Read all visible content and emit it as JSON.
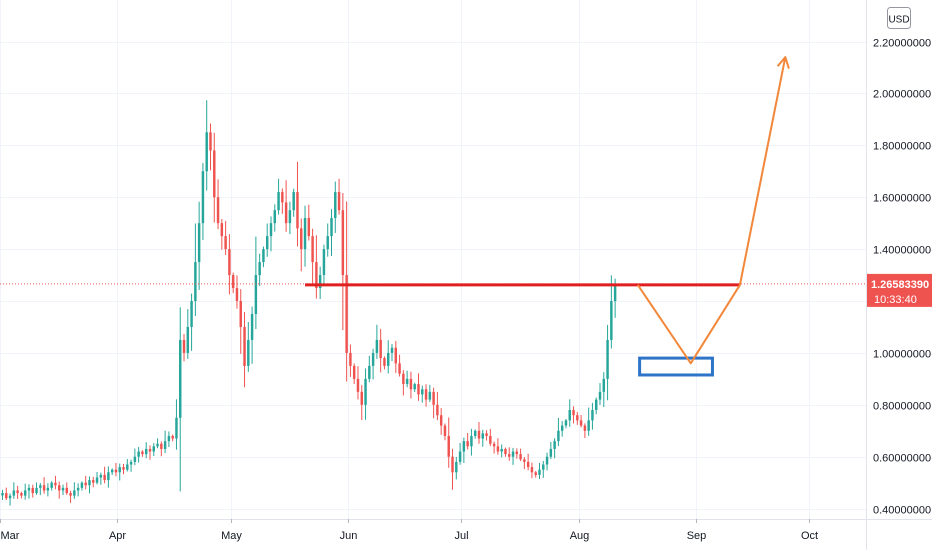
{
  "currency_button": {
    "label": "USD"
  },
  "price_label": {
    "value": "1.26583390",
    "time": "10:33:40",
    "color": "#ef5350"
  },
  "chart_data": {
    "type": "candlestick",
    "title": "",
    "xlabel": "",
    "ylabel": "",
    "ylim": [
      0.36,
      2.36
    ],
    "y_tick_labels": [
      "0.40000000",
      "0.60000000",
      "0.80000000",
      "1.00000000",
      "1.20000000",
      "1.40000000",
      "1.60000000",
      "1.80000000",
      "2.00000000",
      "2.20000000"
    ],
    "y_tick_values": [
      0.4,
      0.6,
      0.8,
      1.0,
      1.2,
      1.4,
      1.6,
      1.8,
      2.0,
      2.2
    ],
    "x_tick_labels": [
      "Mar",
      "Apr",
      "May",
      "Jun",
      "Jul",
      "Aug",
      "Sep",
      "Oct"
    ],
    "x_tick_dates": [
      "2021-03-01",
      "2021-04-01",
      "2021-05-01",
      "2021-06-01",
      "2021-07-01",
      "2021-08-01",
      "2021-09-01",
      "2021-10-01"
    ],
    "x_range": [
      "2021-03-01",
      "2021-10-16"
    ],
    "colors": {
      "up": "#26a69a",
      "down": "#ef5350",
      "grid": "#f0f3fa",
      "axis_text": "#131722"
    },
    "grid": true,
    "close": [
      0.46,
      0.44,
      0.45,
      0.47,
      0.46,
      0.45,
      0.47,
      0.48,
      0.46,
      0.48,
      0.49,
      0.47,
      0.48,
      0.5,
      0.49,
      0.47,
      0.48,
      0.46,
      0.45,
      0.47,
      0.48,
      0.5,
      0.49,
      0.51,
      0.5,
      0.52,
      0.53,
      0.51,
      0.54,
      0.55,
      0.54,
      0.56,
      0.55,
      0.57,
      0.58,
      0.6,
      0.62,
      0.61,
      0.63,
      0.62,
      0.64,
      0.65,
      0.63,
      0.66,
      0.68,
      0.67,
      0.75,
      1.05,
      1.0,
      1.1,
      1.2,
      1.35,
      1.5,
      1.7,
      1.85,
      1.78,
      1.6,
      1.5,
      1.45,
      1.4,
      1.3,
      1.25,
      1.2,
      1.1,
      0.95,
      1.05,
      1.15,
      1.3,
      1.35,
      1.4,
      1.45,
      1.5,
      1.55,
      1.62,
      1.58,
      1.5,
      1.55,
      1.62,
      1.48,
      1.4,
      1.52,
      1.45,
      1.35,
      1.25,
      1.3,
      1.4,
      1.45,
      1.52,
      1.62,
      1.55,
      1.3,
      1.0,
      0.95,
      0.9,
      0.85,
      0.8,
      0.9,
      0.95,
      1.0,
      1.05,
      0.98,
      0.95,
      1.0,
      1.02,
      0.96,
      0.92,
      0.88,
      0.9,
      0.86,
      0.88,
      0.84,
      0.86,
      0.82,
      0.85,
      0.8,
      0.76,
      0.72,
      0.68,
      0.6,
      0.54,
      0.58,
      0.62,
      0.66,
      0.64,
      0.68,
      0.7,
      0.67,
      0.69,
      0.68,
      0.65,
      0.64,
      0.62,
      0.63,
      0.61,
      0.6,
      0.62,
      0.61,
      0.59,
      0.58,
      0.56,
      0.54,
      0.53,
      0.55,
      0.57,
      0.6,
      0.63,
      0.66,
      0.7,
      0.72,
      0.74,
      0.78,
      0.76,
      0.74,
      0.72,
      0.7,
      0.74,
      0.78,
      0.82,
      0.85,
      0.9,
      1.05,
      1.2,
      1.266
    ]
  },
  "drawings": {
    "resistance_level": {
      "value": 1.262,
      "color": "#e02020"
    },
    "zone_box": {
      "y_top": 0.98,
      "y_bottom": 0.915,
      "color": "#2e74c7"
    },
    "projection_path": {
      "points": [
        [
          168,
          1.262
        ],
        [
          182,
          0.96
        ],
        [
          195,
          1.262
        ],
        [
          207,
          2.14
        ]
      ],
      "color": "#f2873a"
    }
  }
}
